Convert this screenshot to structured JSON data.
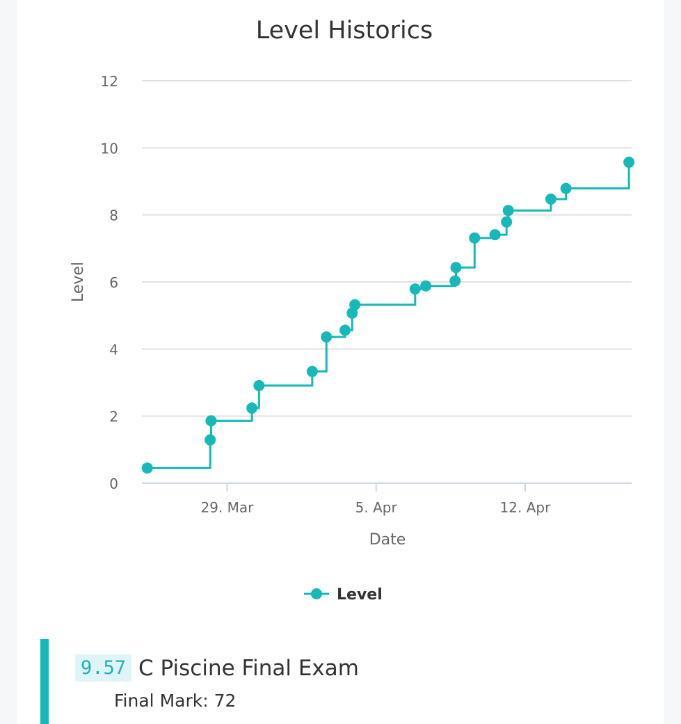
{
  "colors": {
    "series": "#16b8b8",
    "grid": "#e0e0e0",
    "axis": "#ccd6eb",
    "event_bar": "#16b8b8",
    "event_level_bg": "#dff4f6",
    "event_level_text": "#1fb1b8"
  },
  "chart_data": {
    "type": "line",
    "step": true,
    "title": "Level Historics",
    "xlabel": "Date",
    "ylabel": "Level",
    "ylim": [
      0,
      12
    ],
    "yticks": [
      0,
      2,
      4,
      6,
      8,
      10,
      12
    ],
    "x_range": [
      "2025-03-25",
      "2025-04-17"
    ],
    "xticks": [
      {
        "date": "2025-03-29",
        "label": "29. Mar"
      },
      {
        "date": "2025-04-05",
        "label": "5. Apr"
      },
      {
        "date": "2025-04-12",
        "label": "12. Apr"
      }
    ],
    "grid": true,
    "legend": "bottom-center",
    "series": [
      {
        "name": "Level",
        "points": [
          {
            "x": "2025-03-25 06:00",
            "y": 0.45
          },
          {
            "x": "2025-03-28 05:00",
            "y": 1.29
          },
          {
            "x": "2025-03-28 06:00",
            "y": 1.86
          },
          {
            "x": "2025-03-30 04:00",
            "y": 2.24
          },
          {
            "x": "2025-03-30 12:00",
            "y": 2.91
          },
          {
            "x": "2025-04-02 00:00",
            "y": 3.33
          },
          {
            "x": "2025-04-02 16:00",
            "y": 4.36
          },
          {
            "x": "2025-04-03 13:00",
            "y": 4.56
          },
          {
            "x": "2025-04-03 21:00",
            "y": 5.07
          },
          {
            "x": "2025-04-04 00:00",
            "y": 5.32
          },
          {
            "x": "2025-04-06 20:00",
            "y": 5.79
          },
          {
            "x": "2025-04-07 08:00",
            "y": 5.88
          },
          {
            "x": "2025-04-08 17:00",
            "y": 6.03
          },
          {
            "x": "2025-04-08 18:00",
            "y": 6.43
          },
          {
            "x": "2025-04-09 15:00",
            "y": 7.31
          },
          {
            "x": "2025-04-10 14:00",
            "y": 7.41
          },
          {
            "x": "2025-04-11 03:00",
            "y": 7.79
          },
          {
            "x": "2025-04-11 05:00",
            "y": 8.13
          },
          {
            "x": "2025-04-13 05:00",
            "y": 8.47
          },
          {
            "x": "2025-04-13 22:00",
            "y": 8.79
          },
          {
            "x": "2025-04-16 21:00",
            "y": 9.57
          }
        ]
      }
    ]
  },
  "event": {
    "level": "9.57",
    "title": "C Piscine Final Exam",
    "subtitle": "Final Mark: 72"
  }
}
